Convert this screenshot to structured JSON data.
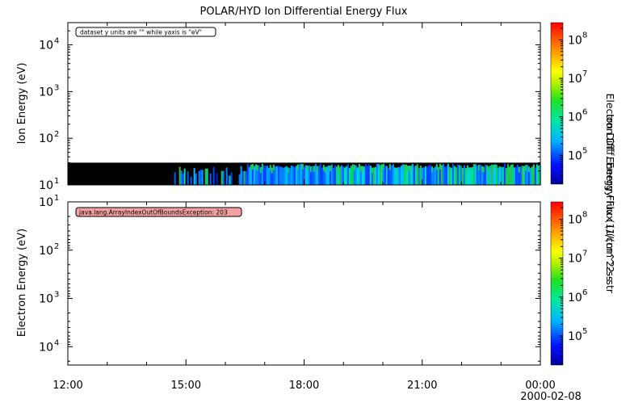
{
  "chart_data": [
    {
      "type": "heatmap",
      "title": "POLAR/HYD  Ion Differential Energy Flux",
      "ylabel": "Ion Energy (eV)",
      "zlabel": "Ion Diff. Energy Flux (1/(cm^2-s-str",
      "y_scale": "log",
      "ylim": [
        10,
        30000
      ],
      "y_ticks": [
        {
          "base": "10",
          "exp": "1",
          "value": 10
        },
        {
          "base": "10",
          "exp": "2",
          "value": 100
        },
        {
          "base": "10",
          "exp": "3",
          "value": 1000
        },
        {
          "base": "10",
          "exp": "4",
          "value": 10000
        }
      ],
      "z_scale": "log",
      "z_ticks": [
        {
          "base": "10",
          "exp": "5",
          "value": 100000
        },
        {
          "base": "10",
          "exp": "6",
          "value": 1000000
        },
        {
          "base": "10",
          "exp": "7",
          "value": 10000000
        },
        {
          "base": "10",
          "exp": "8",
          "value": 100000000
        }
      ],
      "note": "dataset y units are \"\" while yaxis is \"eV\"",
      "data_energy_range": [
        10,
        30
      ],
      "segments": [
        {
          "start_h": 12.0,
          "end_h": 14.7,
          "level": "fill"
        },
        {
          "start_h": 14.7,
          "end_h": 16.55,
          "level": "patchy"
        },
        {
          "start_h": 16.55,
          "end_h": 24.0,
          "level": "moderate"
        }
      ]
    },
    {
      "type": "heatmap",
      "ylabel": "Electron Energy (eV)",
      "zlabel": "Electron Diff. Energy Flux (1/(cm^2-s",
      "y_scale": "log",
      "y_reversed": true,
      "y_ticks": [
        {
          "base": "10",
          "exp": "1",
          "value": 10
        },
        {
          "base": "10",
          "exp": "2",
          "value": 100
        },
        {
          "base": "10",
          "exp": "3",
          "value": 1000
        },
        {
          "base": "10",
          "exp": "4",
          "value": 10000
        }
      ],
      "z_scale": "log",
      "z_ticks": [
        {
          "base": "10",
          "exp": "5",
          "value": 100000
        },
        {
          "base": "10",
          "exp": "6",
          "value": 1000000
        },
        {
          "base": "10",
          "exp": "7",
          "value": 10000000
        },
        {
          "base": "10",
          "exp": "8",
          "value": 100000000
        }
      ],
      "error": "java.lang.ArrayIndexOutOfBoundsException: 203"
    }
  ],
  "x_axis": {
    "range_h": [
      12,
      24
    ],
    "ticks": [
      {
        "h": 12,
        "label": "12:00"
      },
      {
        "h": 15,
        "label": "15:00"
      },
      {
        "h": 18,
        "label": "18:00"
      },
      {
        "h": 21,
        "label": "21:00"
      },
      {
        "h": 24,
        "label": "00:00"
      }
    ],
    "date_label": "2000-02-08"
  }
}
